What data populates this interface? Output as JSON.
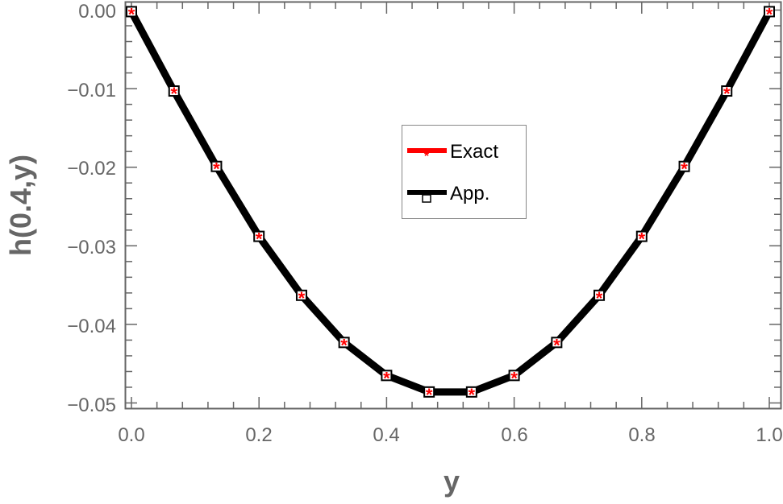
{
  "chart_data": {
    "type": "line",
    "title": "",
    "xlabel": "y",
    "ylabel": "h(0.4,y)",
    "xlim": [
      0.0,
      1.0
    ],
    "ylim": [
      -0.05,
      0.0
    ],
    "grid": false,
    "legend_position": "inside-center",
    "x_ticks": [
      "0.0",
      "0.2",
      "0.4",
      "0.6",
      "0.8",
      "1.0"
    ],
    "y_ticks": [
      "0.00",
      "−0.01",
      "−0.02",
      "−0.03",
      "−0.04",
      "−0.05"
    ],
    "x": [
      0.0,
      0.0667,
      0.1333,
      0.2,
      0.2667,
      0.3333,
      0.4,
      0.4667,
      0.5333,
      0.6,
      0.6667,
      0.7333,
      0.8,
      0.8667,
      0.9333,
      1.0
    ],
    "series": [
      {
        "name": "Exact",
        "color": "#ff0000",
        "marker": "asterisk",
        "values": [
          -0.0002,
          -0.0103,
          -0.0199,
          -0.0288,
          -0.0363,
          -0.0423,
          -0.0465,
          -0.0486,
          -0.0486,
          -0.0465,
          -0.0423,
          -0.0363,
          -0.0288,
          -0.0199,
          -0.0103,
          -0.0002
        ]
      },
      {
        "name": "App.",
        "color": "#000000",
        "marker": "open-square",
        "values": [
          -0.0002,
          -0.0103,
          -0.0199,
          -0.0288,
          -0.0363,
          -0.0423,
          -0.0465,
          -0.0486,
          -0.0486,
          -0.0465,
          -0.0423,
          -0.0363,
          -0.0288,
          -0.0199,
          -0.0103,
          -0.0002
        ]
      }
    ]
  },
  "legend": {
    "items": [
      {
        "label": "Exact",
        "color": "#ff0000"
      },
      {
        "label": "App.",
        "color": "#000000"
      }
    ]
  },
  "colors": {
    "axis": "#666666",
    "exact": "#ff0000",
    "approx": "#000000",
    "legend_border": "#888888"
  }
}
